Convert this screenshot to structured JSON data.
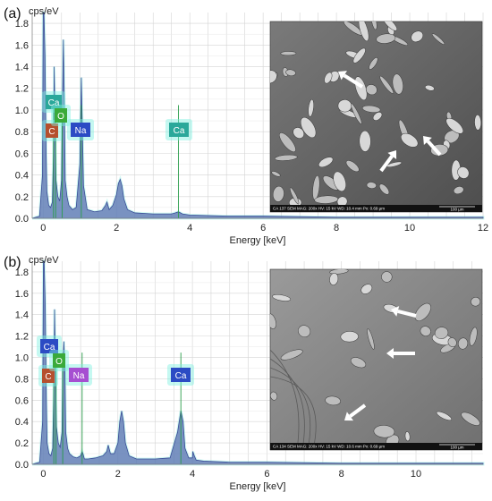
{
  "colors": {
    "spectrum_fill": "#5b6fb0",
    "spectrum_line": "#3a4c96",
    "peak_marker": "#2a9d4a",
    "grid": "#d4d4d4",
    "glow": "#7ff0e0"
  },
  "chart_data": [
    {
      "type": "area",
      "panel_label": "(a)",
      "title": "",
      "ylabel": "cps/eV",
      "xlabel": "Energy [keV]",
      "xlim": [
        -0.3,
        12
      ],
      "ylim": [
        0,
        1.9
      ],
      "xticks": [
        0,
        2,
        4,
        6,
        8,
        10,
        12
      ],
      "yticks": [
        0.0,
        0.2,
        0.4,
        0.6,
        0.8,
        1.0,
        1.2,
        1.4,
        1.6,
        1.8
      ],
      "grid": true,
      "series": [
        {
          "x": [
            -0.3,
            -0.1,
            -0.02,
            0.0,
            0.02,
            0.05,
            0.08,
            0.1,
            0.15,
            0.2,
            0.25,
            0.28,
            0.3,
            0.35,
            0.4,
            0.45,
            0.5,
            0.52,
            0.55,
            0.58,
            0.6,
            0.65,
            0.7,
            0.8,
            0.9,
            1.0,
            1.04,
            1.07,
            1.1,
            1.2,
            1.4,
            1.6,
            1.7,
            1.74,
            1.8,
            1.9,
            2.0,
            2.05,
            2.1,
            2.15,
            2.2,
            2.3,
            2.5,
            3.0,
            3.5,
            3.6,
            3.69,
            3.8,
            4.0,
            5.0,
            6.0,
            8.0,
            10.0,
            12.0
          ],
          "y": [
            0,
            0.02,
            0.4,
            1.9,
            1.9,
            1.5,
            0.6,
            0.25,
            0.12,
            0.1,
            0.15,
            0.6,
            1.4,
            0.35,
            0.2,
            0.16,
            0.35,
            1.0,
            1.65,
            1.0,
            0.35,
            0.2,
            0.12,
            0.08,
            0.1,
            0.5,
            1.3,
            0.8,
            0.3,
            0.08,
            0.06,
            0.07,
            0.12,
            0.15,
            0.08,
            0.12,
            0.22,
            0.32,
            0.36,
            0.3,
            0.18,
            0.08,
            0.05,
            0.04,
            0.04,
            0.05,
            0.06,
            0.04,
            0.03,
            0.02,
            0.02,
            0.01,
            0.01,
            0.01
          ]
        }
      ],
      "peaks": [
        {
          "element": "Ca",
          "energy": 0.34,
          "color": "#2aa89a"
        },
        {
          "element": "C",
          "energy": 0.28,
          "color": "#b5502e"
        },
        {
          "element": "O",
          "energy": 0.52,
          "color": "#3aaa3a"
        },
        {
          "element": "Na",
          "energy": 1.04,
          "color": "#2b4bc4"
        },
        {
          "element": "Ca",
          "energy": 3.69,
          "color": "#2aa89a"
        }
      ],
      "sem_inset": {
        "caption": "CA 137   SEM   MAG: 200x   HV: 15 kV   WD: 10.4 mm   Px: 0.69 µm",
        "scale_bar": "100 µm"
      }
    },
    {
      "type": "area",
      "panel_label": "(b)",
      "title": "",
      "ylabel": "cps/eV",
      "xlabel": "Energy [keV]",
      "xlim": [
        -0.3,
        11.8
      ],
      "ylim": [
        0,
        1.9
      ],
      "xticks": [
        0,
        2,
        4,
        6,
        8,
        10
      ],
      "yticks": [
        0.0,
        0.2,
        0.4,
        0.6,
        0.8,
        1.0,
        1.2,
        1.4,
        1.6,
        1.8
      ],
      "grid": true,
      "series": [
        {
          "x": [
            -0.3,
            -0.1,
            -0.02,
            0.0,
            0.02,
            0.05,
            0.08,
            0.1,
            0.15,
            0.2,
            0.25,
            0.28,
            0.3,
            0.35,
            0.4,
            0.45,
            0.5,
            0.52,
            0.55,
            0.58,
            0.6,
            0.65,
            0.7,
            0.8,
            0.9,
            1.0,
            1.04,
            1.07,
            1.1,
            1.2,
            1.4,
            1.6,
            1.7,
            1.74,
            1.8,
            1.9,
            2.0,
            2.05,
            2.1,
            2.15,
            2.2,
            2.3,
            2.5,
            3.0,
            3.4,
            3.6,
            3.69,
            3.75,
            3.8,
            3.9,
            4.0,
            4.01,
            4.05,
            4.1,
            4.3,
            5.0,
            6.0,
            8.0,
            10.0,
            11.8
          ],
          "y": [
            0,
            0.02,
            0.4,
            1.9,
            1.9,
            1.5,
            0.6,
            0.2,
            0.1,
            0.08,
            0.15,
            0.7,
            1.45,
            0.35,
            0.2,
            0.16,
            0.3,
            0.9,
            1.15,
            0.85,
            0.3,
            0.15,
            0.1,
            0.07,
            0.06,
            0.08,
            0.12,
            0.09,
            0.05,
            0.05,
            0.06,
            0.08,
            0.12,
            0.18,
            0.1,
            0.1,
            0.2,
            0.4,
            0.5,
            0.4,
            0.2,
            0.08,
            0.05,
            0.05,
            0.06,
            0.3,
            0.5,
            0.4,
            0.15,
            0.06,
            0.06,
            0.12,
            0.08,
            0.04,
            0.03,
            0.02,
            0.02,
            0.01,
            0.01,
            0.01
          ]
        }
      ],
      "peaks": [
        {
          "element": "Ca",
          "energy": 0.34,
          "color": "#2b4bc4"
        },
        {
          "element": "C",
          "energy": 0.28,
          "color": "#b5502e"
        },
        {
          "element": "O",
          "energy": 0.52,
          "color": "#3aaa3a"
        },
        {
          "element": "Na",
          "energy": 1.04,
          "color": "#a64fd1"
        },
        {
          "element": "Ca",
          "energy": 3.69,
          "color": "#2b4bc4"
        }
      ],
      "sem_inset": {
        "caption": "CA 134   SEM   MAG: 200x   HV: 15 kV   WD: 10.6 mm   Px: 0.69 µm",
        "scale_bar": "100 µm"
      }
    }
  ]
}
